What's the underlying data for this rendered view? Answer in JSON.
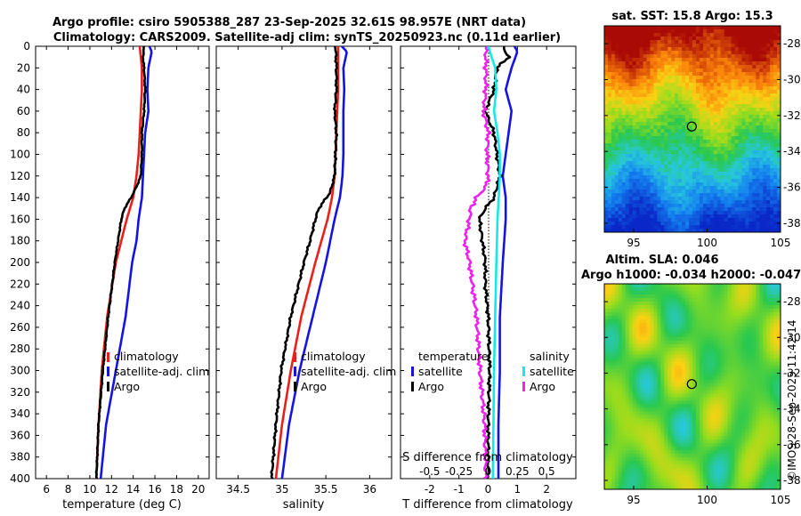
{
  "title": {
    "line1": "Argo profile: csiro 5905388_287 23-Sep-2025 32.61S 98.957E (NRT data)",
    "line2": "Climatology: CARS2009. Satellite-adj clim: synTS_20250923.nc (0.11d earlier)"
  },
  "colors": {
    "climatology": "#e8201a",
    "satellite": "#1414e0",
    "argo": "#000000",
    "salinity_satellite": "#14e8e8",
    "argo_salinity_diff": "#f020f0"
  },
  "depth_ticks": [
    "0",
    "20",
    "40",
    "60",
    "80",
    "100",
    "120",
    "140",
    "160",
    "180",
    "200",
    "220",
    "240",
    "260",
    "280",
    "300",
    "320",
    "340",
    "360",
    "380",
    "400"
  ],
  "chart_data": [
    {
      "type": "line",
      "name": "temperature-profile",
      "xlabel": "temperature (deg C)",
      "ylabel": "depth",
      "xlim": [
        5,
        21
      ],
      "ylim": [
        0,
        400
      ],
      "xticks": [
        6,
        8,
        10,
        12,
        14,
        16,
        18,
        20
      ],
      "xtick_labels": [
        "6",
        "8",
        "10",
        "12",
        "14",
        "16",
        "18",
        "20"
      ],
      "legend": [
        "climatology",
        "satellite-adj. clim",
        "Argo"
      ],
      "legend_position": "bottom-center",
      "series": [
        {
          "name": "climatology",
          "depth": [
            0,
            20,
            40,
            60,
            80,
            100,
            120,
            140,
            160,
            180,
            200,
            250,
            300,
            350,
            400
          ],
          "values": [
            14.6,
            14.8,
            14.8,
            14.7,
            14.6,
            14.5,
            14.3,
            14.0,
            13.4,
            12.9,
            12.4,
            11.6,
            11.1,
            10.8,
            10.6
          ]
        },
        {
          "name": "satellite-adj. clim",
          "depth": [
            0,
            5,
            20,
            40,
            60,
            80,
            100,
            120,
            140,
            160,
            180,
            200,
            250,
            300,
            350,
            400
          ],
          "values": [
            15.5,
            15.7,
            15.4,
            15.3,
            15.4,
            15.1,
            15.0,
            14.9,
            14.8,
            14.5,
            14.3,
            13.9,
            13.3,
            12.4,
            11.5,
            11.0
          ]
        },
        {
          "name": "Argo",
          "depth": [
            0,
            10,
            20,
            40,
            60,
            80,
            100,
            120,
            130,
            140,
            145,
            150,
            160,
            180,
            200,
            250,
            300,
            350,
            400
          ],
          "values": [
            15.0,
            14.9,
            15.0,
            15.1,
            15.0,
            14.8,
            14.8,
            14.7,
            14.3,
            13.8,
            13.5,
            13.2,
            12.9,
            12.6,
            12.3,
            11.7,
            11.2,
            10.8,
            10.6
          ]
        }
      ]
    },
    {
      "type": "line",
      "name": "salinity-profile",
      "xlabel": "salinity",
      "ylabel": "depth",
      "xlim": [
        34.25,
        36.25
      ],
      "ylim": [
        0,
        400
      ],
      "xticks": [
        34.5,
        35,
        35.5,
        36
      ],
      "xtick_labels": [
        "34.5",
        "35",
        "35.5",
        "36"
      ],
      "legend": [
        "climatology",
        "satellite-adj. clim",
        "Argo"
      ],
      "legend_position": "bottom-center",
      "series": [
        {
          "name": "climatology",
          "depth": [
            0,
            40,
            80,
            120,
            140,
            160,
            180,
            200,
            250,
            300,
            350,
            400
          ],
          "values": [
            35.64,
            35.64,
            35.62,
            35.6,
            35.57,
            35.52,
            35.45,
            35.38,
            35.22,
            35.1,
            35.0,
            34.93
          ]
        },
        {
          "name": "satellite-adj. clim",
          "depth": [
            0,
            5,
            20,
            40,
            60,
            80,
            100,
            120,
            140,
            160,
            180,
            200,
            250,
            300,
            350,
            400
          ],
          "values": [
            35.68,
            35.74,
            35.7,
            35.71,
            35.7,
            35.7,
            35.7,
            35.69,
            35.66,
            35.6,
            35.55,
            35.5,
            35.35,
            35.2,
            35.08,
            35.0
          ]
        },
        {
          "name": "Argo",
          "depth": [
            0,
            20,
            40,
            60,
            80,
            100,
            120,
            135,
            150,
            160,
            180,
            200,
            250,
            300,
            350,
            400
          ],
          "values": [
            35.61,
            35.62,
            35.62,
            35.6,
            35.62,
            35.61,
            35.6,
            35.55,
            35.42,
            35.38,
            35.32,
            35.25,
            35.1,
            34.99,
            34.93,
            34.88
          ]
        }
      ]
    },
    {
      "type": "line",
      "name": "difference-profile",
      "xlabel": "T difference from climatology",
      "top_label": "S difference from climatology",
      "ylabel": "depth",
      "xlim": [
        -3,
        3
      ],
      "ylim": [
        0,
        400
      ],
      "xticks": [
        -2,
        -1,
        0,
        1,
        2
      ],
      "xtick_labels": [
        "-2",
        "-1",
        "0",
        "1",
        "2"
      ],
      "s_xlim": [
        -0.75,
        0.75
      ],
      "s_xticks": [
        -0.5,
        -0.25,
        0,
        0.25,
        0.5
      ],
      "s_xtick_labels": [
        "-0.5",
        "-0.25",
        "0",
        "0.25",
        "0.5"
      ],
      "legend_temperature_title": "temperature",
      "legend_salinity_title": "salinity",
      "legend_temperature": [
        "satellite",
        "Argo"
      ],
      "legend_salinity": [
        "satellite",
        "Argo"
      ],
      "series": [
        {
          "name": "temperature satellite",
          "axis": "T",
          "depth": [
            0,
            5,
            20,
            40,
            60,
            80,
            100,
            120,
            140,
            160,
            200,
            250,
            300,
            350,
            400
          ],
          "values": [
            0.9,
            1.0,
            0.8,
            0.6,
            0.8,
            0.7,
            0.6,
            0.5,
            0.6,
            0.6,
            0.5,
            0.4,
            0.4,
            0.35,
            0.35
          ]
        },
        {
          "name": "temperature Argo",
          "axis": "T",
          "depth": [
            0,
            10,
            20,
            40,
            60,
            80,
            100,
            120,
            140,
            150,
            160,
            180,
            200,
            220,
            250,
            300,
            350,
            400
          ],
          "values": [
            0.5,
            0.7,
            0.3,
            0.2,
            -0.1,
            0.2,
            0.3,
            0.4,
            0.2,
            -0.1,
            -0.3,
            -0.2,
            -0.1,
            -0.1,
            0.0,
            0.05,
            0.0,
            0.0
          ]
        },
        {
          "name": "salinity satellite",
          "axis": "S",
          "depth": [
            0,
            20,
            40,
            60,
            80,
            100,
            120,
            140,
            160,
            200,
            250,
            300,
            400
          ],
          "values": [
            0.0,
            0.06,
            0.07,
            0.05,
            0.08,
            0.1,
            0.1,
            0.09,
            0.08,
            0.07,
            0.06,
            0.05,
            0.04
          ]
        },
        {
          "name": "salinity Argo",
          "axis": "S",
          "depth": [
            0,
            20,
            40,
            60,
            80,
            100,
            120,
            130,
            140,
            150,
            160,
            180,
            200,
            250,
            300,
            350,
            400
          ],
          "values": [
            -0.02,
            -0.02,
            -0.02,
            -0.04,
            0.0,
            -0.01,
            0.0,
            -0.02,
            -0.1,
            -0.15,
            -0.16,
            -0.2,
            -0.16,
            -0.1,
            -0.07,
            -0.03,
            -0.02
          ]
        }
      ]
    },
    {
      "type": "heatmap",
      "name": "sst-map",
      "title": "sat. SST: 15.8 Argo: 15.3",
      "xlim": [
        93,
        105
      ],
      "ylim": [
        -38.5,
        -27
      ],
      "xticks": [
        95,
        100,
        105
      ],
      "yticks": [
        -28,
        -30,
        -32,
        -34,
        -36,
        -38
      ],
      "xtick_labels": [
        "95",
        "100",
        "105"
      ],
      "ytick_labels": [
        "-28",
        "-30",
        "-32",
        "-34",
        "-36",
        "-38"
      ],
      "argo_position": {
        "lon": 98.957,
        "lat": -32.61
      }
    },
    {
      "type": "heatmap",
      "name": "sla-map",
      "title": "Altim. SLA: 0.046",
      "subtitle": "Argo h1000: -0.034 h2000: -0.047",
      "xlim": [
        93,
        105
      ],
      "ylim": [
        -38.5,
        -27
      ],
      "xticks": [
        95,
        100,
        105
      ],
      "yticks": [
        -28,
        -30,
        -32,
        -34,
        -36,
        -38
      ],
      "xtick_labels": [
        "95",
        "100",
        "105"
      ],
      "ytick_labels": [
        "-28",
        "-30",
        "-32",
        "-34",
        "-36",
        "-38"
      ],
      "argo_position": {
        "lon": 98.957,
        "lat": -32.61
      }
    }
  ],
  "footer_credit": "©IMOS 28-Sep-2025 11:42:14"
}
